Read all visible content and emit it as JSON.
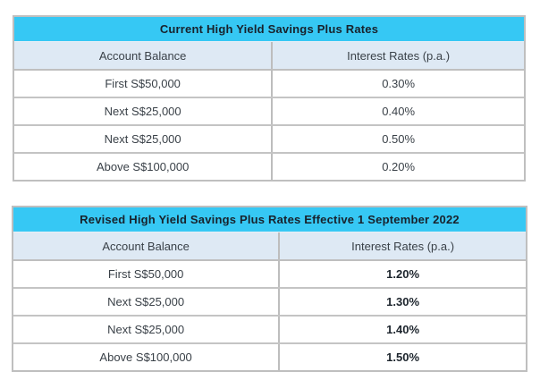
{
  "page": {
    "background": "#ffffff"
  },
  "colors": {
    "title_bar_bg": "#36c8f4",
    "subheader_bg": "#dee9f4",
    "border_gray": "#bfbfbf",
    "title_text": "#18222c",
    "body_text": "#3a4148"
  },
  "tables": [
    {
      "title": "Current High Yield Savings Plus Rates",
      "columns": {
        "balance": "Account Balance",
        "rate": "Interest Rates (p.a.)"
      },
      "rows": [
        {
          "balance": "First S$50,000",
          "rate": "0.30%"
        },
        {
          "balance": "Next S$25,000",
          "rate": "0.40%"
        },
        {
          "balance": "Next S$25,000",
          "rate": "0.50%"
        },
        {
          "balance": "Above S$100,000",
          "rate": "0.20%"
        }
      ],
      "rates_bold": false
    },
    {
      "title": "Revised High Yield Savings Plus Rates Effective 1 September 2022",
      "columns": {
        "balance": "Account Balance",
        "rate": "Interest Rates (p.a.)"
      },
      "rows": [
        {
          "balance": "First S$50,000",
          "rate": "1.20%"
        },
        {
          "balance": "Next S$25,000",
          "rate": "1.30%"
        },
        {
          "balance": "Next S$25,000",
          "rate": "1.40%"
        },
        {
          "balance": "Above S$100,000",
          "rate": "1.50%"
        }
      ],
      "rates_bold": true
    }
  ],
  "chart_data": [
    {
      "type": "table",
      "title": "Current High Yield Savings Plus Rates",
      "columns": [
        "Account Balance",
        "Interest Rates (p.a.)"
      ],
      "rows": [
        [
          "First S$50,000",
          "0.30%"
        ],
        [
          "Next S$25,000",
          "0.40%"
        ],
        [
          "Next S$25,000",
          "0.50%"
        ],
        [
          "Above S$100,000",
          "0.20%"
        ]
      ]
    },
    {
      "type": "table",
      "title": "Revised High Yield Savings Plus Rates Effective 1 September 2022",
      "columns": [
        "Account Balance",
        "Interest Rates (p.a.)"
      ],
      "rows": [
        [
          "First S$50,000",
          "1.20%"
        ],
        [
          "Next S$25,000",
          "1.30%"
        ],
        [
          "Next S$25,000",
          "1.40%"
        ],
        [
          "Above S$100,000",
          "1.50%"
        ]
      ]
    }
  ]
}
